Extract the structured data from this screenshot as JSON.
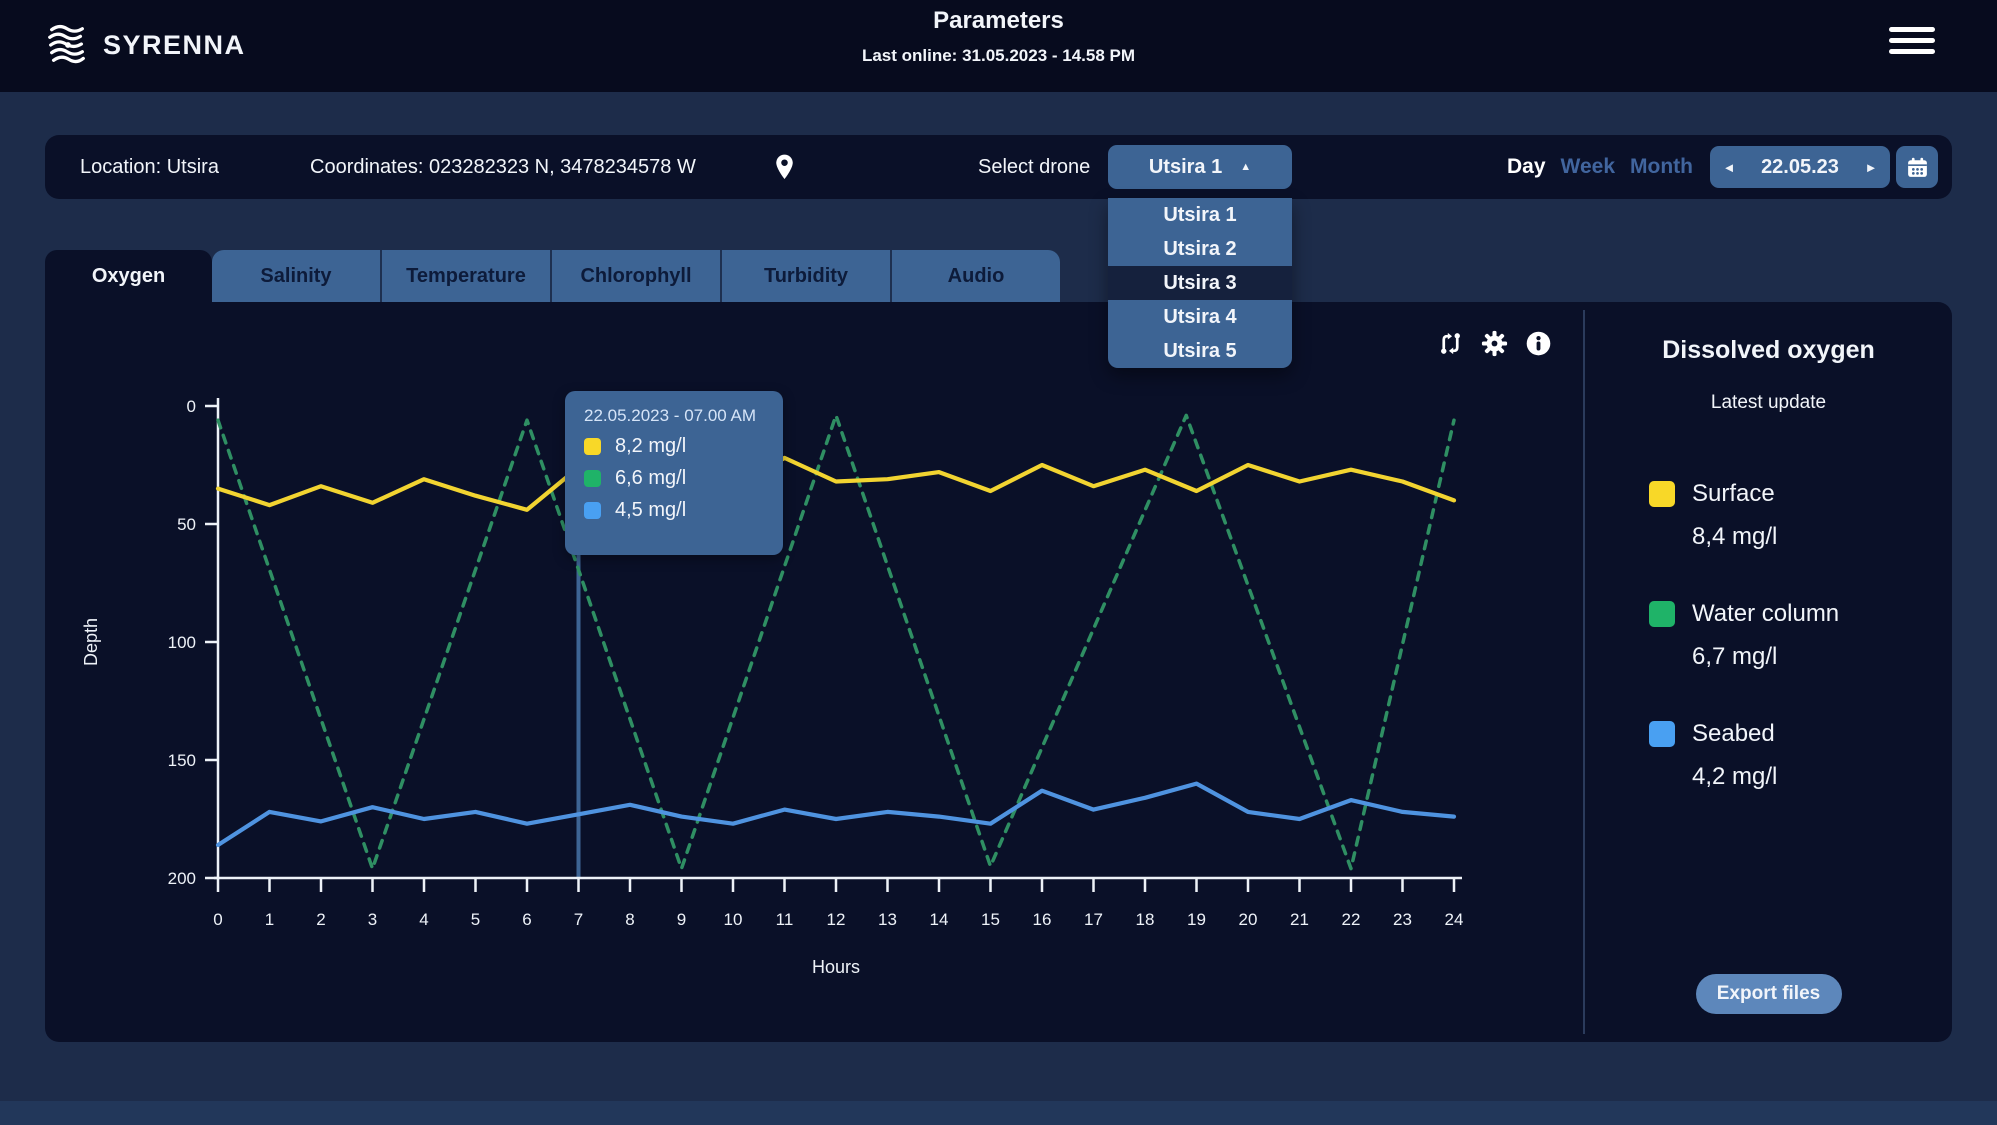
{
  "header": {
    "brand": "SYRENNA",
    "title": "Parameters",
    "last_online": "Last online: 31.05.2023 - 14.58 PM"
  },
  "info_bar": {
    "location": "Location: Utsira",
    "coordinates": "Coordinates: 023282323 N, 3478234578 W",
    "select_drone_label": "Select drone",
    "drone_selected": "Utsira 1",
    "drone_caret_glyph": "▲",
    "drone_options": [
      "Utsira 1",
      "Utsira 2",
      "Utsira 3",
      "Utsira 4",
      "Utsira 5"
    ],
    "drone_highlighted": "Utsira 3",
    "range_options": [
      "Day",
      "Week",
      "Month"
    ],
    "range_active": "Day",
    "date": "22.05.23",
    "prev_glyph": "◄",
    "next_glyph": "►"
  },
  "tabs": {
    "items": [
      "Oxygen",
      "Salinity",
      "Temperature",
      "Chlorophyll",
      "Turbidity",
      "Audio"
    ],
    "active": "Oxygen"
  },
  "tooltip": {
    "datetime": "22.05.2023 - 07.00 AM",
    "rows": [
      {
        "series": "Surface",
        "color": "#f8d828",
        "value": "8,2 mg/l"
      },
      {
        "series": "Water column",
        "color": "#1fb368",
        "value": "6,6 mg/l"
      },
      {
        "series": "Seabed",
        "color": "#49a0f2",
        "value": "4,5 mg/l"
      }
    ]
  },
  "chart_data": {
    "type": "line",
    "xlabel": "Hours",
    "ylabel": "Depth",
    "xlim": [
      0,
      24
    ],
    "ylim": [
      0,
      200
    ],
    "y_inverted": true,
    "grid": false,
    "x_ticks": [
      0,
      1,
      2,
      3,
      4,
      5,
      6,
      7,
      8,
      9,
      10,
      11,
      12,
      13,
      14,
      15,
      16,
      17,
      18,
      19,
      20,
      21,
      22,
      23,
      24
    ],
    "y_ticks": [
      0,
      50,
      100,
      150,
      200
    ],
    "crosshair_x": 7,
    "series": [
      {
        "name": "Surface",
        "color": "#f2d431",
        "style": "solid",
        "x": [
          0,
          1,
          2,
          3,
          4,
          5,
          6,
          7,
          8,
          9,
          10,
          11,
          12,
          13,
          14,
          15,
          16,
          17,
          18,
          19,
          20,
          21,
          22,
          23,
          24
        ],
        "y": [
          35,
          42,
          34,
          41,
          31,
          38,
          44,
          26,
          36,
          30,
          35,
          22,
          32,
          31,
          28,
          36,
          25,
          34,
          27,
          36,
          25,
          32,
          27,
          32,
          40
        ]
      },
      {
        "name": "Water column",
        "color": "#2f8f63",
        "style": "dashed",
        "x": [
          0,
          3,
          6,
          9,
          12,
          15,
          18.8,
          22,
          24
        ],
        "y": [
          6,
          196,
          6,
          196,
          4,
          195,
          4,
          196,
          6
        ]
      },
      {
        "name": "Seabed",
        "color": "#4f93e0",
        "style": "solid",
        "x": [
          0,
          1,
          2,
          3,
          4,
          5,
          6,
          7,
          8,
          9,
          10,
          11,
          12,
          13,
          14,
          15,
          16,
          17,
          18,
          19,
          20,
          21,
          22,
          23,
          24
        ],
        "y": [
          186,
          172,
          176,
          170,
          175,
          172,
          177,
          173,
          169,
          174,
          177,
          171,
          175,
          172,
          174,
          177,
          163,
          171,
          166,
          160,
          172,
          175,
          167,
          172,
          174
        ]
      }
    ]
  },
  "side_panel": {
    "title": "Dissolved oxygen",
    "subtitle": "Latest update",
    "legend": [
      {
        "label": "Surface",
        "value": "8,4 mg/l",
        "color": "#f8d828"
      },
      {
        "label": "Water column",
        "value": "6,7 mg/l",
        "color": "#1fb368"
      },
      {
        "label": "Seabed",
        "value": "4,2 mg/l",
        "color": "#49a0f2"
      }
    ],
    "export_label": "Export files"
  },
  "icons": {
    "menu": "hamburger-menu",
    "location": "map-pin",
    "compare": "git-compare-arrows",
    "settings": "gear",
    "info": "info-circle",
    "calendar": "calendar"
  },
  "colors": {
    "body_bg": "#1d2c4a",
    "header_bg": "#070b1e",
    "panel_bg": "#0a1028",
    "accent_steel_blue": "#3d6494",
    "button_light_blue": "#5d87bb",
    "menu_highlight": "#15213d",
    "muted_toggle_text": "#41659e",
    "crosshair": "#3d6494"
  }
}
